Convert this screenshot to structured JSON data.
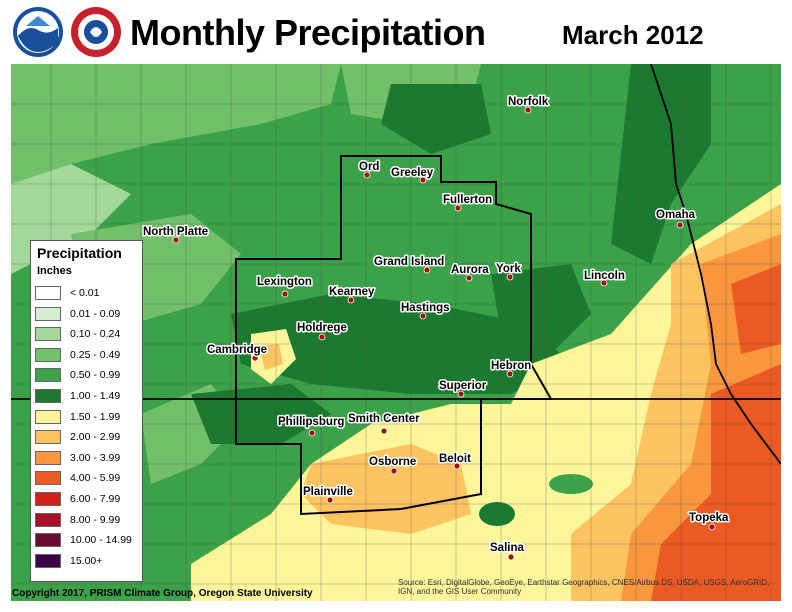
{
  "header": {
    "title": "Monthly Precipitation",
    "subtitle": "March 2012"
  },
  "legend": {
    "title": "Precipitation",
    "units": "Inches",
    "items": [
      {
        "label": "< 0.01",
        "color": "#ffffff"
      },
      {
        "label": "0.01 - 0.09",
        "color": "#d4eecf"
      },
      {
        "label": "0.10 - 0.24",
        "color": "#a4d89a"
      },
      {
        "label": "0.25 - 0.49",
        "color": "#72c06a"
      },
      {
        "label": "0.50 - 0.99",
        "color": "#3ca24a"
      },
      {
        "label": "1.00 - 1.49",
        "color": "#1c7a30"
      },
      {
        "label": "1.50 - 1.99",
        "color": "#fdf59a"
      },
      {
        "label": "2.00 - 2.99",
        "color": "#fcc461"
      },
      {
        "label": "3.00 - 3.99",
        "color": "#f8973e"
      },
      {
        "label": "4.00 - 5.99",
        "color": "#ec5a24"
      },
      {
        "label": "6.00 - 7.99",
        "color": "#d4201c"
      },
      {
        "label": "8.00 - 9.99",
        "color": "#a8102c"
      },
      {
        "label": "10.00 - 14.99",
        "color": "#6a0a30"
      },
      {
        "label": "15.00+",
        "color": "#3a0648"
      }
    ]
  },
  "cities": [
    {
      "name": "Norfolk"
    },
    {
      "name": "Ord"
    },
    {
      "name": "Greeley"
    },
    {
      "name": "Fullerton"
    },
    {
      "name": "North Platte"
    },
    {
      "name": "Omaha"
    },
    {
      "name": "Grand Island"
    },
    {
      "name": "Aurora"
    },
    {
      "name": "York"
    },
    {
      "name": "Lincoln"
    },
    {
      "name": "Lexington"
    },
    {
      "name": "Kearney"
    },
    {
      "name": "Hastings"
    },
    {
      "name": "Holdrege"
    },
    {
      "name": "Cambridge"
    },
    {
      "name": "Hebron"
    },
    {
      "name": "Superior"
    },
    {
      "name": "Phillipsburg"
    },
    {
      "name": "Smith Center"
    },
    {
      "name": "Osborne"
    },
    {
      "name": "Beloit"
    },
    {
      "name": "Plainville"
    },
    {
      "name": "Topeka"
    },
    {
      "name": "Salina"
    }
  ],
  "footer": {
    "copyright": "Copyright 2017, PRISM Climate Group, Oregon State University",
    "source": "Source: Esri, DigitalGlobe, GeoEye, Earthstar Geographics, CNES/Airbus DS, USDA, USGS, AeroGRID, IGN, and the GIS User Community"
  }
}
